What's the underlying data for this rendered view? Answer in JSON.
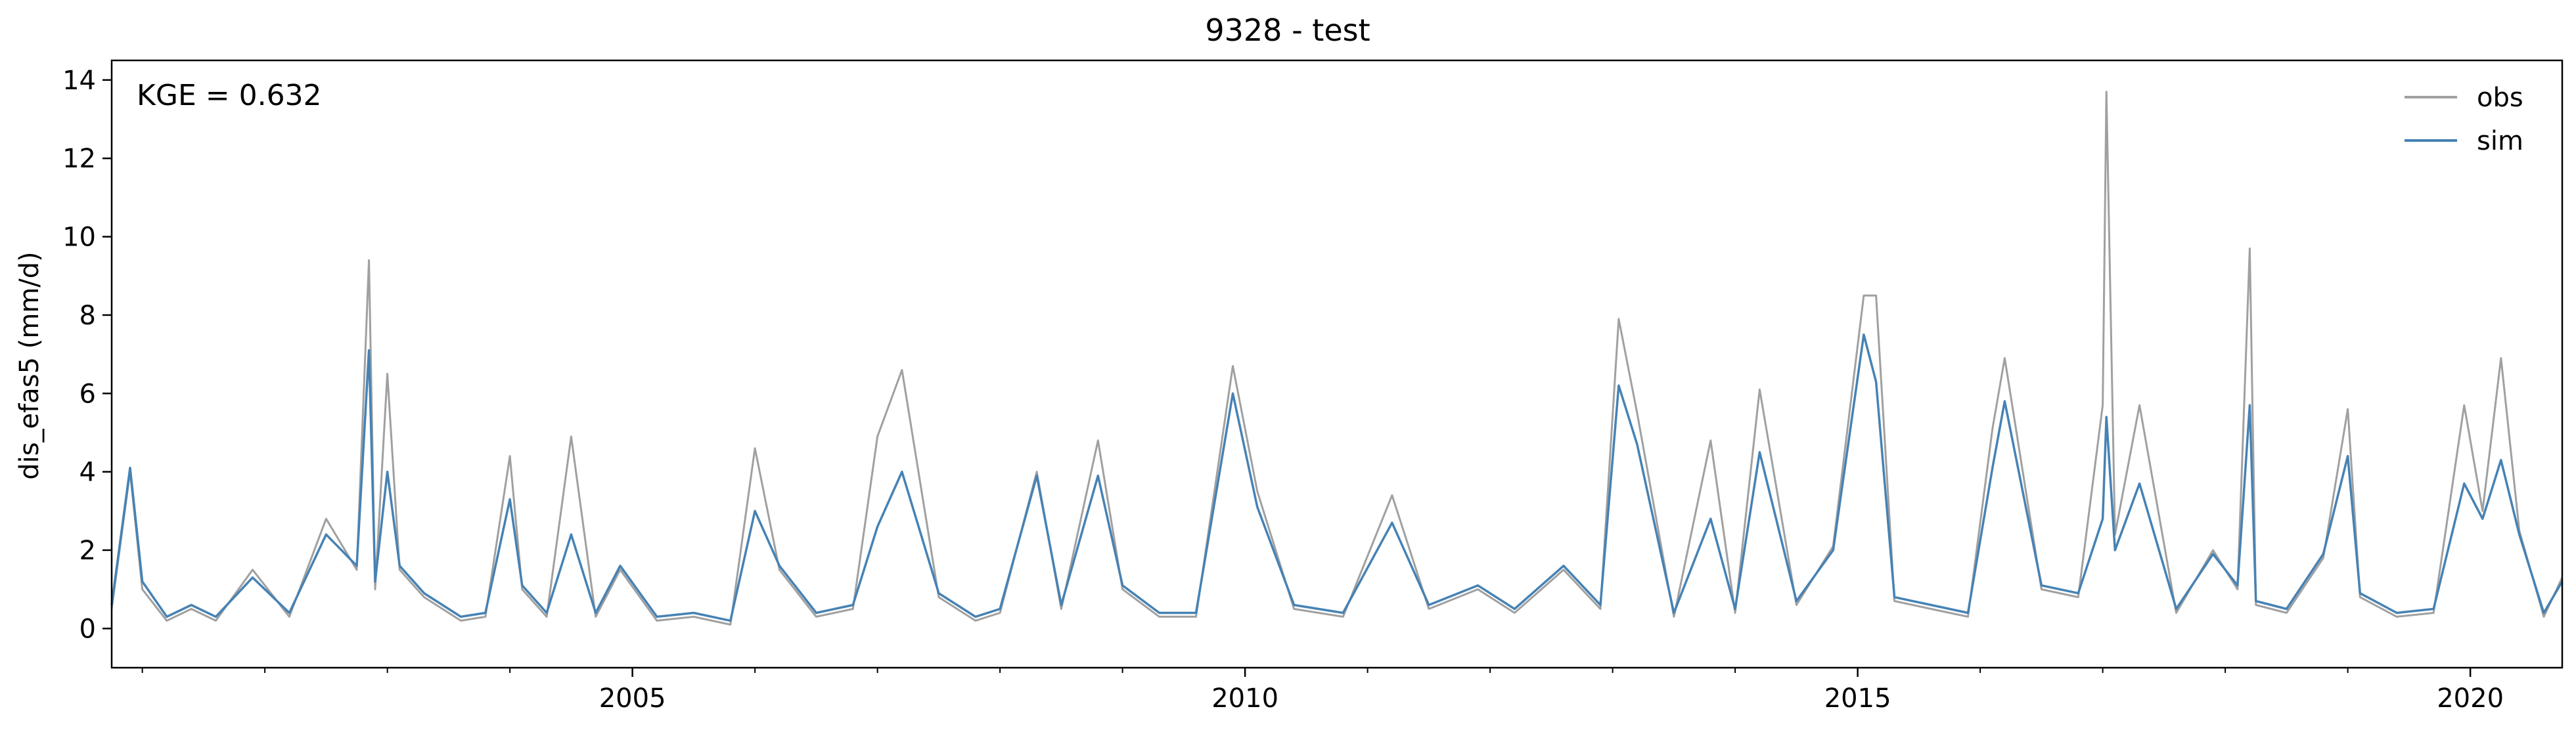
{
  "chart_data": {
    "type": "line",
    "title": "9328 - test",
    "xlabel": "",
    "ylabel": "dis_efas5 (mm/d)",
    "annotation": "KGE = 0.632",
    "xlim": [
      2000.75,
      2020.75
    ],
    "ylim": [
      -1.0,
      14.5
    ],
    "xticks": [
      2005,
      2010,
      2015,
      2020
    ],
    "xtick_labels": [
      "2005",
      "2010",
      "2015",
      "2020"
    ],
    "yticks": [
      0,
      2,
      4,
      6,
      8,
      10,
      12,
      14
    ],
    "ytick_labels": [
      "0",
      "2",
      "4",
      "6",
      "8",
      "10",
      "12",
      "14"
    ],
    "grid": false,
    "legend": {
      "position": "top-right",
      "frameless": true
    },
    "series": [
      {
        "name": "obs",
        "color": "#a0a0a0",
        "x": [
          2000.75,
          2000.9,
          2001.0,
          2001.2,
          2001.4,
          2001.6,
          2001.9,
          2002.2,
          2002.5,
          2002.75,
          2002.85,
          2002.9,
          2003.0,
          2003.1,
          2003.3,
          2003.6,
          2003.8,
          2004.0,
          2004.1,
          2004.3,
          2004.5,
          2004.7,
          2004.9,
          2005.2,
          2005.5,
          2005.8,
          2006.0,
          2006.2,
          2006.5,
          2006.8,
          2007.0,
          2007.2,
          2007.5,
          2007.8,
          2008.0,
          2008.3,
          2008.5,
          2008.8,
          2009.0,
          2009.3,
          2009.6,
          2009.9,
          2010.1,
          2010.4,
          2010.8,
          2011.2,
          2011.5,
          2011.9,
          2012.2,
          2012.6,
          2012.9,
          2013.05,
          2013.2,
          2013.5,
          2013.8,
          2014.0,
          2014.2,
          2014.5,
          2014.8,
          2015.05,
          2015.15,
          2015.3,
          2015.6,
          2015.9,
          2016.1,
          2016.2,
          2016.5,
          2016.8,
          2017.0,
          2017.03,
          2017.1,
          2017.3,
          2017.6,
          2017.9,
          2018.1,
          2018.2,
          2018.25,
          2018.5,
          2018.8,
          2019.0,
          2019.1,
          2019.4,
          2019.7,
          2019.95,
          2020.1,
          2020.25,
          2020.4,
          2020.6,
          2020.75
        ],
        "y": [
          0.5,
          4.0,
          1.0,
          0.2,
          0.5,
          0.2,
          1.5,
          0.3,
          2.8,
          1.5,
          9.4,
          1.0,
          6.5,
          1.5,
          0.8,
          0.2,
          0.3,
          4.4,
          1.0,
          0.3,
          4.9,
          0.3,
          1.5,
          0.2,
          0.3,
          0.1,
          4.6,
          1.5,
          0.3,
          0.5,
          4.9,
          6.6,
          0.8,
          0.2,
          0.4,
          4.0,
          0.5,
          4.8,
          1.0,
          0.3,
          0.3,
          6.7,
          3.5,
          0.5,
          0.3,
          3.4,
          0.5,
          1.0,
          0.4,
          1.5,
          0.5,
          7.9,
          5.5,
          0.3,
          4.8,
          0.4,
          6.1,
          0.6,
          2.1,
          8.5,
          8.5,
          0.7,
          0.5,
          0.3,
          5.1,
          6.9,
          1.0,
          0.8,
          5.7,
          13.7,
          2.4,
          5.7,
          0.4,
          2.0,
          1.0,
          9.7,
          0.6,
          0.4,
          1.8,
          5.6,
          0.8,
          0.3,
          0.4,
          5.7,
          3.0,
          6.9,
          2.5,
          0.3,
          1.3
        ]
      },
      {
        "name": "sim",
        "color": "#4682b4",
        "x": [
          2000.75,
          2000.9,
          2001.0,
          2001.2,
          2001.4,
          2001.6,
          2001.9,
          2002.2,
          2002.5,
          2002.75,
          2002.85,
          2002.9,
          2003.0,
          2003.1,
          2003.3,
          2003.6,
          2003.8,
          2004.0,
          2004.1,
          2004.3,
          2004.5,
          2004.7,
          2004.9,
          2005.2,
          2005.5,
          2005.8,
          2006.0,
          2006.2,
          2006.5,
          2006.8,
          2007.0,
          2007.2,
          2007.5,
          2007.8,
          2008.0,
          2008.3,
          2008.5,
          2008.8,
          2009.0,
          2009.3,
          2009.6,
          2009.9,
          2010.1,
          2010.4,
          2010.8,
          2011.2,
          2011.5,
          2011.9,
          2012.2,
          2012.6,
          2012.9,
          2013.05,
          2013.2,
          2013.5,
          2013.8,
          2014.0,
          2014.2,
          2014.5,
          2014.8,
          2015.05,
          2015.15,
          2015.3,
          2015.6,
          2015.9,
          2016.1,
          2016.2,
          2016.5,
          2016.8,
          2017.0,
          2017.03,
          2017.1,
          2017.3,
          2017.6,
          2017.9,
          2018.1,
          2018.2,
          2018.25,
          2018.5,
          2018.8,
          2019.0,
          2019.1,
          2019.4,
          2019.7,
          2019.95,
          2020.1,
          2020.25,
          2020.4,
          2020.6,
          2020.75
        ],
        "y": [
          0.6,
          4.1,
          1.2,
          0.3,
          0.6,
          0.3,
          1.3,
          0.4,
          2.4,
          1.6,
          7.1,
          1.2,
          4.0,
          1.6,
          0.9,
          0.3,
          0.4,
          3.3,
          1.1,
          0.4,
          2.4,
          0.4,
          1.6,
          0.3,
          0.4,
          0.2,
          3.0,
          1.6,
          0.4,
          0.6,
          2.6,
          4.0,
          0.9,
          0.3,
          0.5,
          3.9,
          0.6,
          3.9,
          1.1,
          0.4,
          0.4,
          6.0,
          3.1,
          0.6,
          0.4,
          2.7,
          0.6,
          1.1,
          0.5,
          1.6,
          0.6,
          6.2,
          4.7,
          0.4,
          2.8,
          0.5,
          4.5,
          0.7,
          2.0,
          7.5,
          6.3,
          0.8,
          0.6,
          0.4,
          4.1,
          5.8,
          1.1,
          0.9,
          2.8,
          5.4,
          2.0,
          3.7,
          0.5,
          1.9,
          1.1,
          5.7,
          0.7,
          0.5,
          1.9,
          4.4,
          0.9,
          0.4,
          0.5,
          3.7,
          2.8,
          4.3,
          2.4,
          0.4,
          1.2
        ]
      }
    ]
  }
}
